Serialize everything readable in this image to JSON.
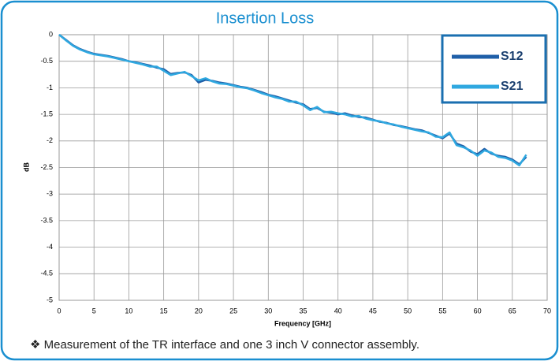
{
  "chart_data": {
    "type": "line",
    "title": "Insertion Loss",
    "xlabel": "Frequency [GHz]",
    "ylabel": "dB",
    "note": "❖  Measurement of the TR interface and one 3 inch V connector assembly.",
    "x": [
      0,
      1,
      2,
      3,
      4,
      5,
      6,
      7,
      8,
      9,
      10,
      11,
      12,
      13,
      14,
      15,
      16,
      17,
      18,
      19,
      20,
      21,
      22,
      23,
      24,
      25,
      26,
      27,
      28,
      29,
      30,
      31,
      32,
      33,
      34,
      35,
      36,
      37,
      38,
      39,
      40,
      41,
      42,
      43,
      44,
      45,
      46,
      47,
      48,
      49,
      50,
      51,
      52,
      53,
      54,
      55,
      56,
      57,
      58,
      59,
      60,
      61,
      62,
      63,
      64,
      65,
      66,
      67
    ],
    "series": [
      {
        "name": "S12",
        "color": "#1f5fa8",
        "values": [
          0,
          -0.1,
          -0.2,
          -0.27,
          -0.32,
          -0.36,
          -0.38,
          -0.4,
          -0.43,
          -0.46,
          -0.5,
          -0.52,
          -0.55,
          -0.58,
          -0.62,
          -0.65,
          -0.74,
          -0.72,
          -0.71,
          -0.76,
          -0.9,
          -0.85,
          -0.87,
          -0.9,
          -0.92,
          -0.95,
          -0.98,
          -1.0,
          -1.04,
          -1.08,
          -1.13,
          -1.16,
          -1.2,
          -1.24,
          -1.28,
          -1.31,
          -1.4,
          -1.38,
          -1.45,
          -1.47,
          -1.5,
          -1.48,
          -1.52,
          -1.55,
          -1.56,
          -1.6,
          -1.64,
          -1.66,
          -1.7,
          -1.72,
          -1.75,
          -1.78,
          -1.8,
          -1.85,
          -1.9,
          -1.95,
          -1.86,
          -2.05,
          -2.1,
          -2.2,
          -2.25,
          -2.15,
          -2.24,
          -2.28,
          -2.3,
          -2.35,
          -2.44,
          -2.3
        ]
      },
      {
        "name": "S21",
        "color": "#2fa8e0",
        "values": [
          0,
          -0.11,
          -0.21,
          -0.28,
          -0.33,
          -0.37,
          -0.39,
          -0.41,
          -0.44,
          -0.47,
          -0.5,
          -0.53,
          -0.56,
          -0.6,
          -0.6,
          -0.68,
          -0.76,
          -0.73,
          -0.7,
          -0.78,
          -0.86,
          -0.82,
          -0.88,
          -0.92,
          -0.93,
          -0.96,
          -0.99,
          -1.01,
          -1.05,
          -1.1,
          -1.14,
          -1.18,
          -1.21,
          -1.26,
          -1.26,
          -1.33,
          -1.42,
          -1.36,
          -1.46,
          -1.45,
          -1.48,
          -1.5,
          -1.54,
          -1.53,
          -1.58,
          -1.61,
          -1.63,
          -1.67,
          -1.69,
          -1.73,
          -1.76,
          -1.79,
          -1.82,
          -1.84,
          -1.92,
          -1.93,
          -1.84,
          -2.08,
          -2.12,
          -2.18,
          -2.28,
          -2.18,
          -2.22,
          -2.3,
          -2.32,
          -2.37,
          -2.46,
          -2.26
        ]
      }
    ],
    "xlim": [
      0,
      70
    ],
    "xticks": [
      0,
      5,
      10,
      15,
      20,
      25,
      30,
      35,
      40,
      45,
      50,
      55,
      60,
      65,
      70
    ],
    "ylim": [
      -5,
      0
    ],
    "yticks": [
      0,
      -0.5,
      -1,
      -1.5,
      -2,
      -2.5,
      -3,
      -3.5,
      -4,
      -4.5,
      -5
    ],
    "grid": true,
    "legend": "upper right"
  }
}
